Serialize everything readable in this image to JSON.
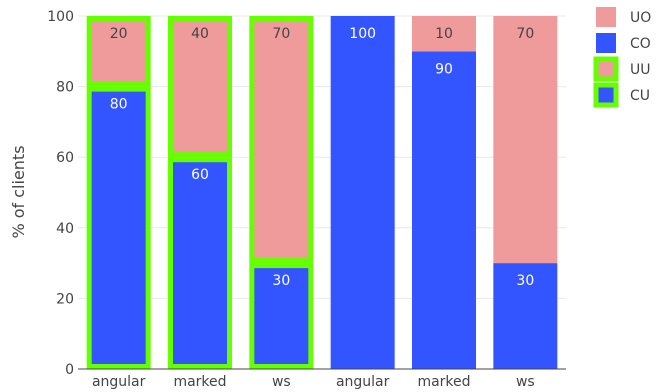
{
  "chart_data": {
    "type": "bar",
    "stacked": true,
    "categories": [
      "angular",
      "marked",
      "ws",
      "angular",
      "marked",
      "ws"
    ],
    "ylabel": "% of clients",
    "xlabel": "",
    "ylim": [
      0,
      100
    ],
    "yticks": [
      0,
      20,
      40,
      60,
      80,
      100
    ],
    "grid": true,
    "legend_position": "top-right",
    "series": [
      {
        "name": "CU",
        "legend_style": "highlighted",
        "color": "#3355ff",
        "values": [
          80,
          60,
          30,
          0,
          0,
          0
        ],
        "labels": [
          "80",
          "60",
          "30",
          "",
          "",
          ""
        ]
      },
      {
        "name": "UU",
        "legend_style": "highlighted",
        "color": "#ef9b9b",
        "values": [
          20,
          40,
          70,
          0,
          0,
          0
        ],
        "labels": [
          "20",
          "40",
          "70",
          "",
          "",
          ""
        ]
      },
      {
        "name": "CO",
        "legend_style": "plain",
        "color": "#3355ff",
        "values": [
          0,
          0,
          0,
          100,
          90,
          30
        ],
        "labels": [
          "",
          "",
          "",
          "100",
          "90",
          "30"
        ]
      },
      {
        "name": "UO",
        "legend_style": "plain",
        "color": "#ef9b9b",
        "values": [
          0,
          0,
          0,
          0,
          10,
          70
        ],
        "labels": [
          "",
          "",
          "",
          "",
          "10",
          "70"
        ]
      }
    ],
    "legend_order": [
      "UO",
      "CO",
      "UU",
      "CU"
    ],
    "highlight_color": "#66ff00"
  }
}
